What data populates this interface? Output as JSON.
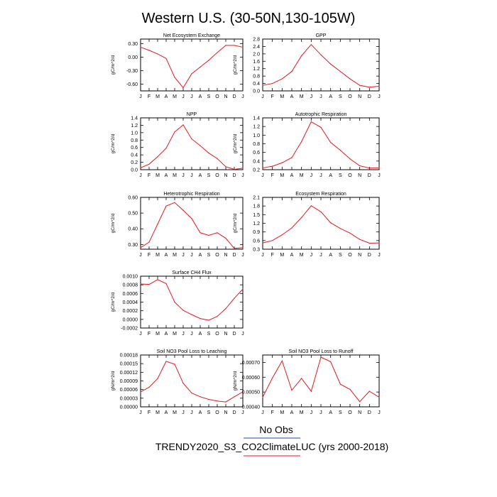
{
  "figure": {
    "title": "Western U.S. (30-50N,130-105W)",
    "legend": [
      {
        "label": "No Obs",
        "color": "#1f3fbf"
      },
      {
        "label": "TRENDY2020_S3_CO2ClimateLUC (yrs 2000-2018)",
        "color": "#e41a1c"
      }
    ]
  },
  "months": [
    "J",
    "F",
    "M",
    "A",
    "M",
    "J",
    "J",
    "A",
    "S",
    "O",
    "N",
    "D",
    "J"
  ],
  "chart_data": [
    {
      "type": "line",
      "title": "Net Ecosystem Exchange",
      "ylabel": "gC/m^2/d",
      "ylim": [
        -0.75,
        0.4
      ],
      "yticks": [
        0.3,
        0.0,
        -0.3,
        -0.6
      ],
      "ytick_labels": [
        "0.30",
        "0.00",
        "-0.30",
        "-0.60"
      ],
      "series": [
        {
          "color": "#e41a1c",
          "values": [
            0.22,
            0.15,
            0.07,
            -0.03,
            -0.45,
            -0.68,
            -0.37,
            -0.22,
            -0.07,
            0.1,
            0.26,
            0.26,
            0.22
          ]
        }
      ]
    },
    {
      "type": "line",
      "title": "GPP",
      "ylabel": "gC/m^2/d",
      "ylim": [
        0.0,
        2.8
      ],
      "yticks": [
        0.0,
        0.4,
        0.8,
        1.2,
        1.6,
        2.0,
        2.4,
        2.8
      ],
      "ytick_labels": [
        "0.0",
        "0.4",
        "0.8",
        "1.2",
        "1.6",
        "2.0",
        "2.4",
        "2.8"
      ],
      "series": [
        {
          "color": "#e41a1c",
          "values": [
            0.3,
            0.4,
            0.65,
            1.05,
            1.9,
            2.5,
            1.95,
            1.45,
            1.05,
            0.65,
            0.3,
            0.2,
            0.25
          ]
        }
      ]
    },
    {
      "type": "line",
      "title": "NPP",
      "ylabel": "gC/m^2/d",
      "ylim": [
        0.0,
        1.4
      ],
      "yticks": [
        0.0,
        0.2,
        0.4,
        0.6,
        0.8,
        1.0,
        1.2,
        1.4
      ],
      "ytick_labels": [
        "0.0",
        "0.2",
        "0.4",
        "0.6",
        "0.8",
        "1.0",
        "1.2",
        "1.4"
      ],
      "series": [
        {
          "color": "#e41a1c",
          "values": [
            0.05,
            0.15,
            0.35,
            0.58,
            1.02,
            1.21,
            0.83,
            0.65,
            0.45,
            0.3,
            0.08,
            0.01,
            0.04
          ]
        }
      ]
    },
    {
      "type": "line",
      "title": "Autotrophic Respiration",
      "ylabel": "gC/m^2/d",
      "ylim": [
        0.2,
        1.4
      ],
      "yticks": [
        0.2,
        0.4,
        0.6,
        0.8,
        1.0,
        1.2,
        1.4
      ],
      "ytick_labels": [
        "0.2",
        "0.4",
        "0.6",
        "0.8",
        "1.0",
        "1.2",
        "1.4"
      ],
      "series": [
        {
          "color": "#e41a1c",
          "values": [
            0.24,
            0.28,
            0.36,
            0.48,
            0.85,
            1.31,
            1.18,
            0.83,
            0.65,
            0.45,
            0.29,
            0.24,
            0.24
          ]
        }
      ]
    },
    {
      "type": "line",
      "title": "Heterotrophic Respiration",
      "ylabel": "gC/m^2/d",
      "ylim": [
        0.27,
        0.6
      ],
      "yticks": [
        0.3,
        0.4,
        0.5,
        0.6
      ],
      "ytick_labels": [
        "0.30",
        "0.40",
        "0.50",
        "0.60"
      ],
      "series": [
        {
          "color": "#e41a1c",
          "values": [
            0.28,
            0.315,
            0.43,
            0.545,
            0.567,
            0.518,
            0.465,
            0.375,
            0.358,
            0.375,
            0.34,
            0.275,
            0.28
          ]
        }
      ]
    },
    {
      "type": "line",
      "title": "Ecosystem Respiration",
      "ylabel": "gC/m^2/d",
      "ylim": [
        0.3,
        2.1
      ],
      "yticks": [
        0.3,
        0.6,
        0.9,
        1.2,
        1.5,
        1.8,
        2.1
      ],
      "ytick_labels": [
        "0.3",
        "0.6",
        "0.9",
        "1.2",
        "1.5",
        "1.8",
        "2.1"
      ],
      "series": [
        {
          "color": "#e41a1c",
          "values": [
            0.52,
            0.6,
            0.8,
            1.04,
            1.4,
            1.81,
            1.6,
            1.22,
            1.02,
            0.86,
            0.64,
            0.51,
            0.52
          ]
        }
      ]
    },
    {
      "type": "line",
      "title": "Surface CH4 Flux",
      "ylabel": "gC/m^2/d",
      "ylim": [
        -0.0002,
        0.001
      ],
      "yticks": [
        -0.0002,
        0.0,
        0.0002,
        0.0004,
        0.0006,
        0.0008,
        0.001
      ],
      "ytick_labels": [
        "-0.0002",
        "0.0000",
        "0.0002",
        "0.0004",
        "0.0006",
        "0.0008",
        "0.0010"
      ],
      "series": [
        {
          "color": "#e41a1c",
          "values": [
            0.00082,
            0.00081,
            0.00092,
            0.00083,
            0.0004,
            0.00021,
            0.00011,
            2e-05,
            -2e-05,
            7e-05,
            0.00025,
            0.00049,
            0.0007
          ]
        }
      ]
    },
    {
      "type": "line",
      "title": "Soil NO3 Pool Loss to Leaching",
      "ylabel": "gN/m^2/d",
      "ylim": [
        0.0,
        0.00018
      ],
      "yticks": [
        0.0,
        3e-05,
        6e-05,
        9e-05,
        0.00012,
        0.00015,
        0.00018
      ],
      "ytick_labels": [
        "0.00000",
        "0.00003",
        "0.00006",
        "0.00009",
        "0.00012",
        "0.00015",
        "0.00018"
      ],
      "series": [
        {
          "color": "#e41a1c",
          "values": [
            5.2e-05,
            6.8e-05,
            9.8e-05,
            0.000158,
            0.000148,
            8.2e-05,
            4.8e-05,
            3.5e-05,
            2.6e-05,
            2e-05,
            1.7e-05,
            3.5e-05,
            5.2e-05
          ]
        }
      ]
    },
    {
      "type": "line",
      "title": "Soil NO3 Pool Loss to Runoff",
      "ylabel": "gN/m^2/d",
      "ylim": [
        0.0004,
        0.00075
      ],
      "yticks": [
        0.0004,
        0.0005,
        0.0006,
        0.0007
      ],
      "ytick_labels": [
        "0.00040",
        "0.00050",
        "0.00060",
        "0.00070"
      ],
      "series": [
        {
          "color": "#e41a1c",
          "values": [
            0.000465,
            0.000595,
            0.00071,
            0.000512,
            0.000592,
            0.000505,
            0.000735,
            0.000705,
            0.000553,
            0.000518,
            0.000435,
            0.000505,
            0.000465
          ]
        }
      ]
    }
  ]
}
